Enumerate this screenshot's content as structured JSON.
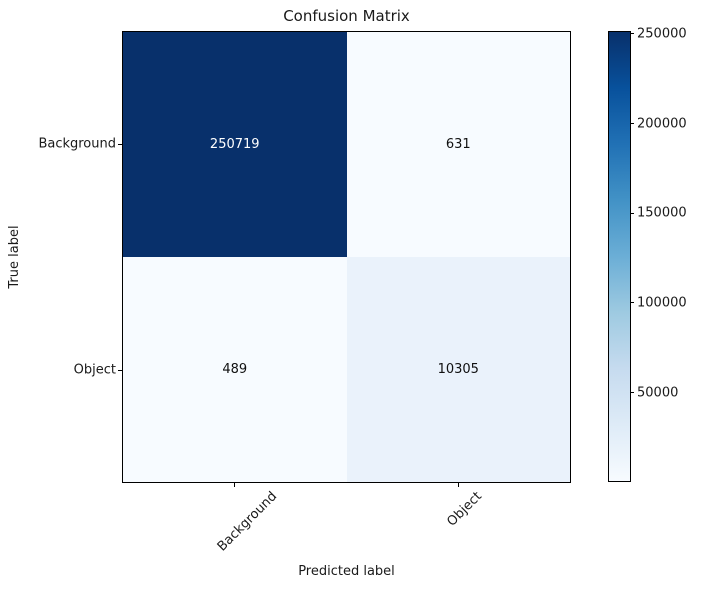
{
  "chart_data": {
    "type": "heatmap",
    "title": "Confusion Matrix",
    "xlabel": "Predicted label",
    "ylabel": "True label",
    "xticklabels": [
      "Background",
      "Object"
    ],
    "yticklabels": [
      "Background",
      "Object"
    ],
    "matrix": [
      [
        250719,
        631
      ],
      [
        489,
        10305
      ]
    ],
    "cells": [
      {
        "row": "Background",
        "col": "Background",
        "value": "250719",
        "bg": "#08306b",
        "fg": "#ffffff"
      },
      {
        "row": "Background",
        "col": "Object",
        "value": "631",
        "bg": "#f7fbff",
        "fg": "#111111"
      },
      {
        "row": "Object",
        "col": "Background",
        "value": "489",
        "bg": "#f7fbff",
        "fg": "#111111"
      },
      {
        "row": "Object",
        "col": "Object",
        "value": "10305",
        "bg": "#eaf2fb",
        "fg": "#111111"
      }
    ],
    "colorbar": {
      "min": 489,
      "max": 250719,
      "ticks": [
        "50000",
        "100000",
        "150000",
        "200000",
        "250000"
      ],
      "gradient": [
        "#f7fbff",
        "#deebf7",
        "#c6dbef",
        "#9ecae1",
        "#6baed6",
        "#4292c6",
        "#2171b5",
        "#08519c",
        "#08306b"
      ]
    },
    "colormap": "Blues",
    "legend_position": "right",
    "grid": "off"
  }
}
